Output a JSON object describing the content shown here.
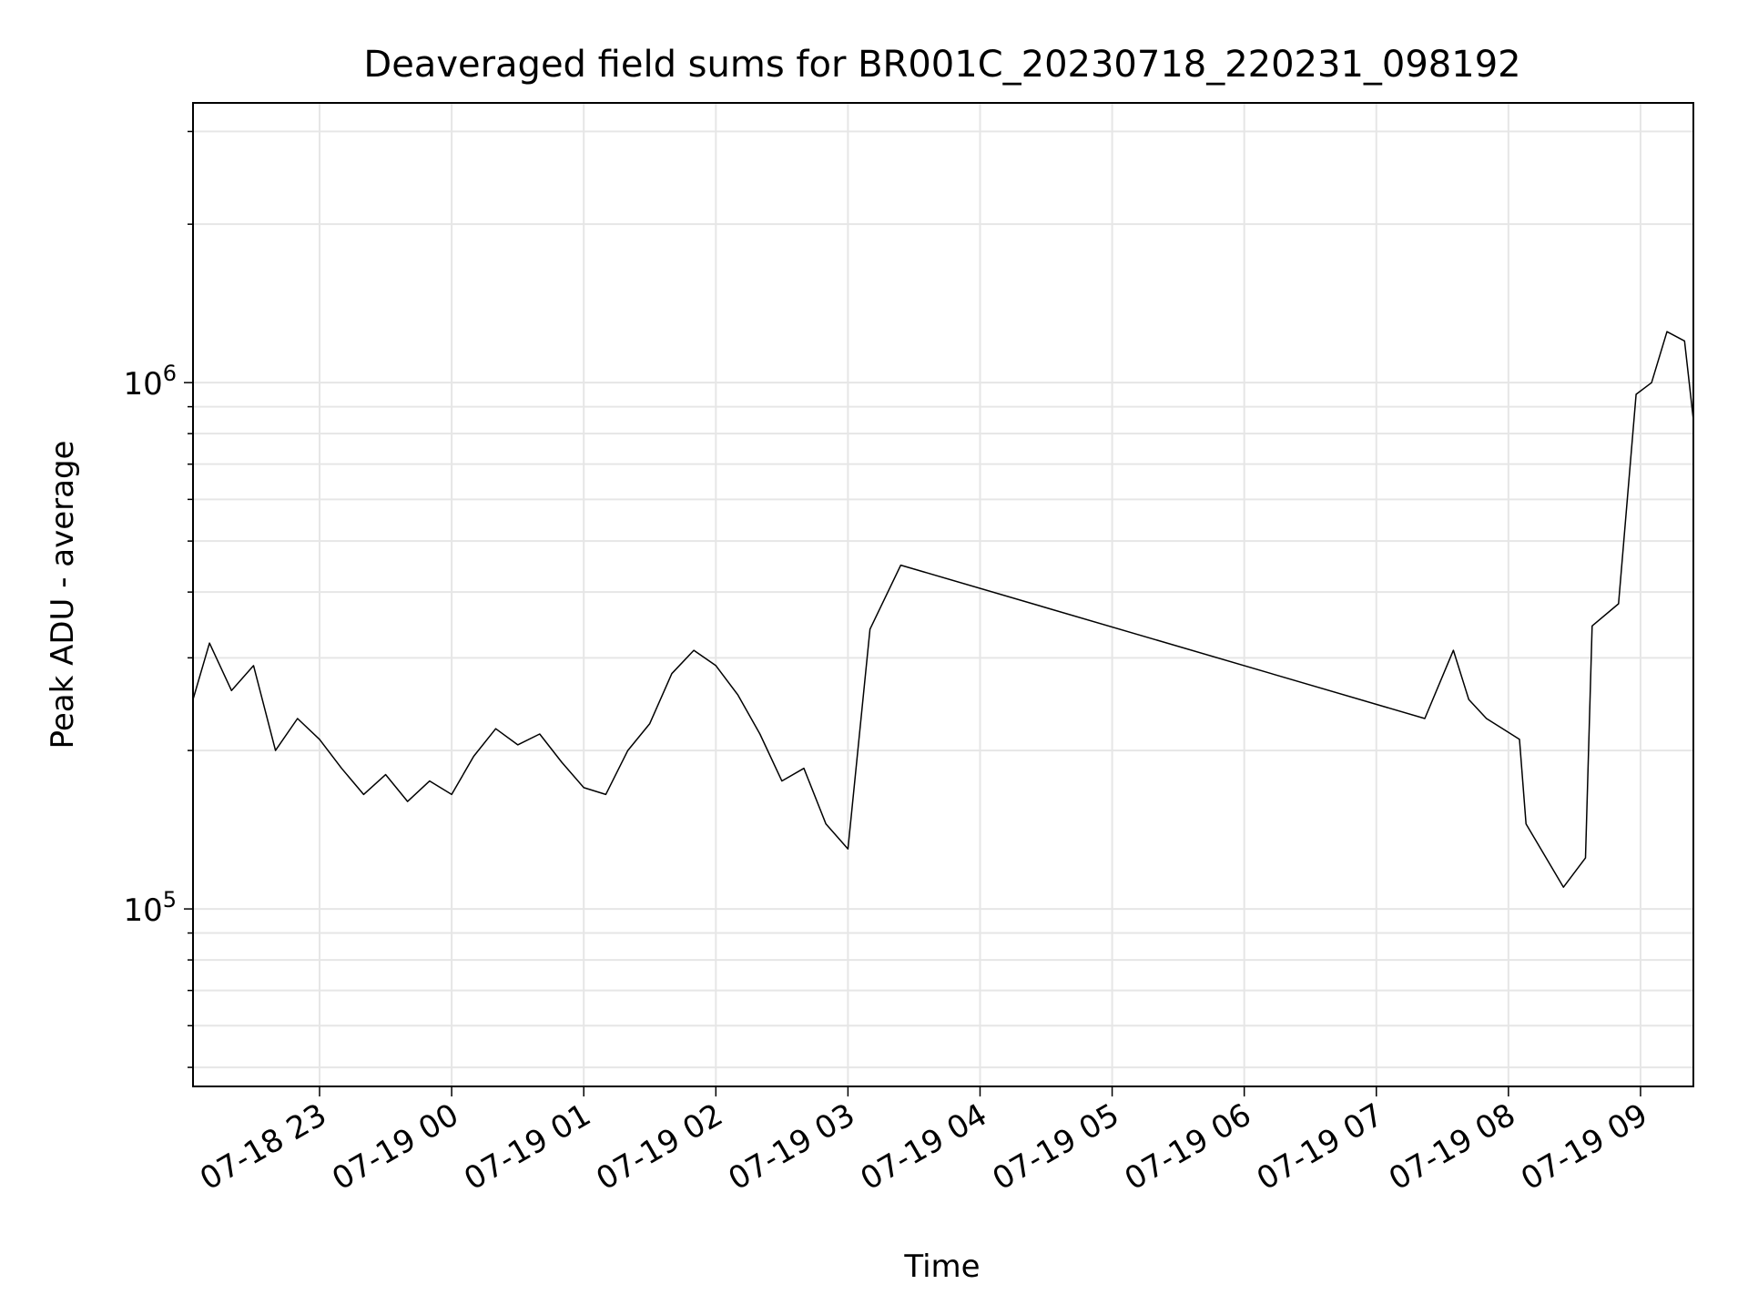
{
  "chart_data": {
    "type": "line",
    "title": "Deaveraged field sums for BR001C_20230718_220231_098192",
    "xlabel": "Time",
    "ylabel": "Peak ADU - average",
    "y_scale": "log",
    "ylim": [
      46000,
      3400000
    ],
    "xlim": [
      "2023-07-18 22:02:31",
      "2023-07-19 09:24:00"
    ],
    "x_ticks": [
      "07-18 23",
      "07-19 00",
      "07-19 01",
      "07-19 02",
      "07-19 03",
      "07-19 04",
      "07-19 05",
      "07-19 06",
      "07-19 07",
      "07-19 08",
      "07-19 09"
    ],
    "y_ticks": [
      {
        "label_base": "10",
        "label_exp": "5",
        "value": 100000
      },
      {
        "label_base": "10",
        "label_exp": "6",
        "value": 1000000
      }
    ],
    "grid": true,
    "line_color": "#000000",
    "series": [
      {
        "x": [
          "2023-07-18 22:02:31",
          "2023-07-18 22:10:00",
          "2023-07-18 22:20:00",
          "2023-07-18 22:30:00",
          "2023-07-18 22:40:00",
          "2023-07-18 22:50:00",
          "2023-07-18 23:00:00",
          "2023-07-18 23:10:00",
          "2023-07-18 23:20:00",
          "2023-07-18 23:30:00",
          "2023-07-18 23:40:00",
          "2023-07-18 23:50:00",
          "2023-07-19 00:00:00",
          "2023-07-19 00:10:00",
          "2023-07-19 00:20:00",
          "2023-07-19 00:30:00",
          "2023-07-19 00:40:00",
          "2023-07-19 00:50:00",
          "2023-07-19 01:00:00",
          "2023-07-19 01:10:00",
          "2023-07-19 01:20:00",
          "2023-07-19 01:30:00",
          "2023-07-19 01:40:00",
          "2023-07-19 01:50:00",
          "2023-07-19 02:00:00",
          "2023-07-19 02:10:00",
          "2023-07-19 02:20:00",
          "2023-07-19 02:30:00",
          "2023-07-19 02:40:00",
          "2023-07-19 02:50:00",
          "2023-07-19 03:00:00",
          "2023-07-19 03:10:00",
          "2023-07-19 03:24:00",
          "2023-07-19 07:22:00",
          "2023-07-19 07:35:00",
          "2023-07-19 07:42:00",
          "2023-07-19 07:50:00",
          "2023-07-19 08:05:00",
          "2023-07-19 08:08:00",
          "2023-07-19 08:25:00",
          "2023-07-19 08:35:00",
          "2023-07-19 08:38:00",
          "2023-07-19 08:50:00",
          "2023-07-19 08:58:00",
          "2023-07-19 09:05:00",
          "2023-07-19 09:12:00",
          "2023-07-19 09:20:00",
          "2023-07-19 09:24:00"
        ],
        "y": [
          250000,
          320000,
          260000,
          290000,
          200000,
          230000,
          210000,
          185000,
          165000,
          180000,
          160000,
          175000,
          165000,
          195000,
          220000,
          205000,
          215000,
          190000,
          170000,
          165000,
          200000,
          225000,
          280000,
          310000,
          290000,
          255000,
          215000,
          175000,
          185000,
          145000,
          130000,
          340000,
          450000,
          230000,
          310000,
          250000,
          230000,
          210000,
          145000,
          110000,
          125000,
          345000,
          380000,
          950000,
          1000000,
          1250000,
          1200000,
          850000
        ]
      }
    ]
  }
}
